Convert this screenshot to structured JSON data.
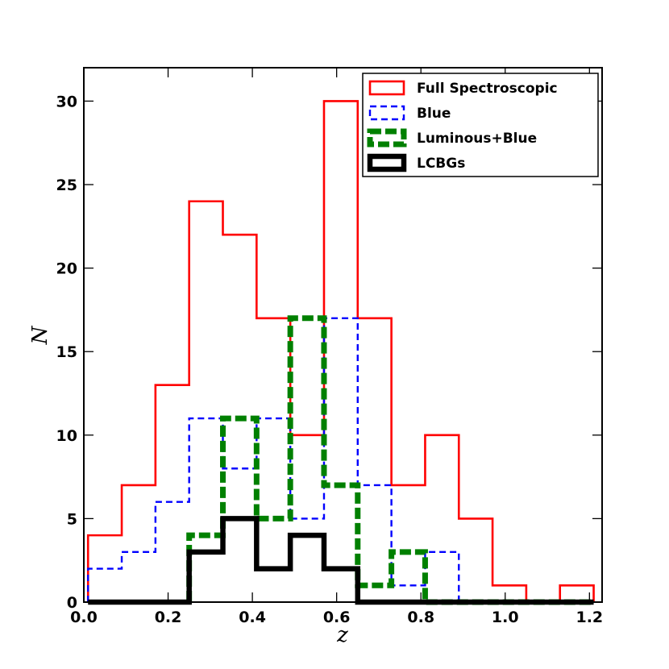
{
  "chart_data": {
    "type": "histogram",
    "xlabel": "z",
    "ylabel": "N",
    "xlim": [
      0.0,
      1.23
    ],
    "ylim": [
      0,
      32
    ],
    "xticks": [
      "0.0",
      "0.2",
      "0.4",
      "0.6",
      "0.8",
      "1.0",
      "1.2"
    ],
    "xtick_values": [
      0.0,
      0.2,
      0.4,
      0.6,
      0.8,
      1.0,
      1.2
    ],
    "yticks": [
      "0",
      "5",
      "10",
      "15",
      "20",
      "25",
      "30"
    ],
    "ytick_values": [
      0,
      5,
      10,
      15,
      20,
      25,
      30
    ],
    "bin_edges": [
      0.01,
      0.09,
      0.17,
      0.25,
      0.33,
      0.41,
      0.49,
      0.57,
      0.65,
      0.73,
      0.81,
      0.89,
      0.97,
      1.05,
      1.13,
      1.21
    ],
    "legend_position": "upper-right",
    "grid": false,
    "series": [
      {
        "name": "Full Spectroscopic",
        "color": "#ff0000",
        "style": "solid-thin",
        "values": [
          4,
          7,
          13,
          24,
          22,
          17,
          10,
          30,
          17,
          7,
          10,
          5,
          1,
          0,
          1
        ]
      },
      {
        "name": "Blue",
        "color": "#0000ff",
        "style": "dashed-thin",
        "values": [
          2,
          3,
          6,
          11,
          8,
          11,
          5,
          17,
          7,
          1,
          3,
          0,
          0,
          0,
          0
        ]
      },
      {
        "name": "Luminous+Blue",
        "color": "#008000",
        "style": "dashed-thick",
        "values": [
          0,
          0,
          0,
          4,
          11,
          5,
          17,
          7,
          1,
          3,
          0,
          0,
          0,
          0,
          0
        ],
        "start_edge_index": 3
      },
      {
        "name": "LCBGs",
        "color": "#000000",
        "style": "solid-thick",
        "values": [
          0,
          0,
          0,
          3,
          5,
          2,
          4,
          2,
          0,
          0,
          0,
          0,
          0,
          0,
          0
        ]
      }
    ]
  }
}
